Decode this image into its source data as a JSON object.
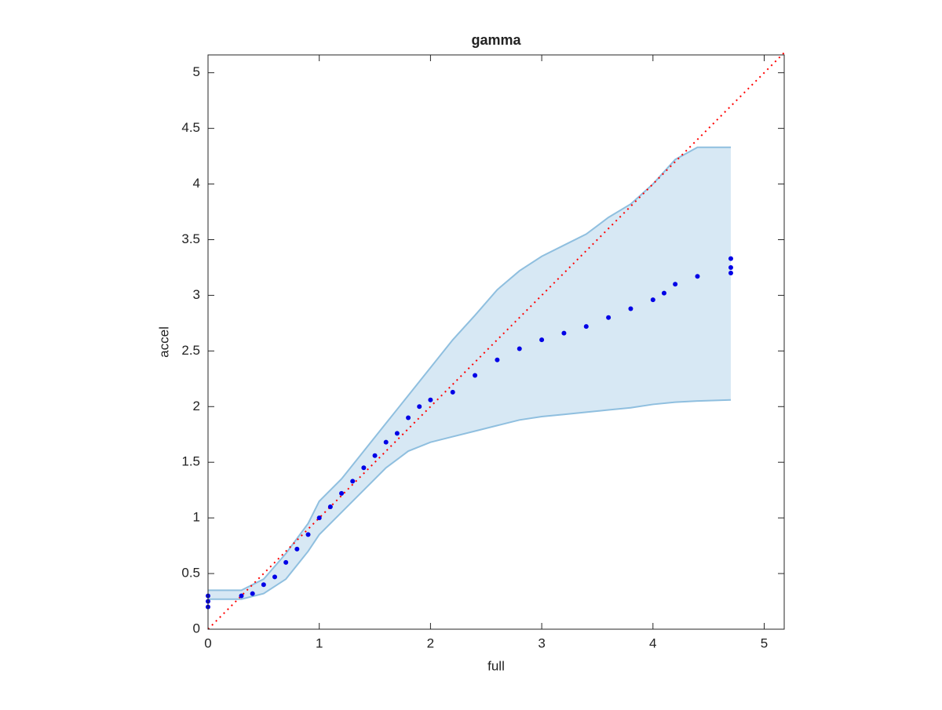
{
  "chart_data": {
    "type": "scatter",
    "title": "gamma",
    "xlabel": "full",
    "ylabel": "accel",
    "xlim": [
      0,
      5.18
    ],
    "ylim": [
      0,
      5.16
    ],
    "xticks": [
      0,
      1,
      2,
      3,
      4,
      5
    ],
    "yticks": [
      0,
      0.5,
      1,
      1.5,
      2,
      2.5,
      3,
      3.5,
      4,
      4.5,
      5
    ],
    "band": {
      "color": "#8fbfdf",
      "fill": "#d7e8f4",
      "x": [
        0,
        0.3,
        0.5,
        0.7,
        0.9,
        1.0,
        1.2,
        1.4,
        1.6,
        1.8,
        2.0,
        2.2,
        2.4,
        2.6,
        2.8,
        3.0,
        3.2,
        3.4,
        3.6,
        3.8,
        4.0,
        4.2,
        4.4,
        4.7
      ],
      "upper": [
        0.35,
        0.35,
        0.45,
        0.68,
        0.95,
        1.15,
        1.35,
        1.6,
        1.85,
        2.1,
        2.35,
        2.6,
        2.82,
        3.05,
        3.22,
        3.35,
        3.45,
        3.55,
        3.7,
        3.82,
        4.0,
        4.22,
        4.33,
        4.33
      ],
      "lower": [
        0.27,
        0.27,
        0.32,
        0.45,
        0.7,
        0.85,
        1.05,
        1.25,
        1.45,
        1.6,
        1.68,
        1.73,
        1.78,
        1.83,
        1.88,
        1.91,
        1.93,
        1.95,
        1.97,
        1.99,
        2.02,
        2.04,
        2.05,
        2.06
      ]
    },
    "points": {
      "color": "#0000e6",
      "x": [
        0,
        0,
        0,
        0.3,
        0.4,
        0.5,
        0.6,
        0.7,
        0.8,
        0.9,
        1.0,
        1.1,
        1.2,
        1.3,
        1.4,
        1.5,
        1.6,
        1.7,
        1.8,
        1.9,
        2.0,
        2.2,
        2.4,
        2.6,
        2.8,
        3.0,
        3.2,
        3.4,
        3.6,
        3.8,
        4.0,
        4.1,
        4.2,
        4.4,
        4.7,
        4.7,
        4.7
      ],
      "y": [
        0.2,
        0.25,
        0.3,
        0.3,
        0.32,
        0.4,
        0.47,
        0.6,
        0.72,
        0.85,
        1.0,
        1.1,
        1.22,
        1.33,
        1.45,
        1.56,
        1.68,
        1.76,
        1.9,
        2.0,
        2.06,
        2.13,
        2.28,
        2.42,
        2.52,
        2.6,
        2.66,
        2.72,
        2.8,
        2.88,
        2.96,
        3.02,
        3.1,
        3.17,
        3.2,
        3.25,
        3.33
      ]
    },
    "reference": {
      "color": "#ff0000",
      "x": [
        0,
        5.18
      ],
      "y": [
        0,
        5.18
      ]
    }
  }
}
